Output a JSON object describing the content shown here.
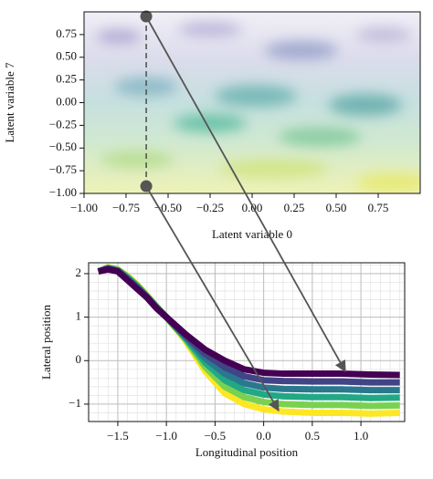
{
  "chart_data": [
    {
      "type": "scatter",
      "xlabel": "Latent variable 0",
      "ylabel": "Latent variable 7",
      "x": [
        -0.63,
        -0.63
      ],
      "values": [
        0.95,
        -0.92
      ],
      "color": "#555555",
      "xlim": [
        -1,
        1
      ],
      "ylim": [
        -1,
        1
      ],
      "xticks": [
        {
          "value": -1,
          "label": "−1.00"
        },
        {
          "value": -0.75,
          "label": "−0.75"
        },
        {
          "value": -0.5,
          "label": "−0.50"
        },
        {
          "value": -0.25,
          "label": "−0.25"
        },
        {
          "value": 0,
          "label": "0.00"
        },
        {
          "value": 0.25,
          "label": "0.25"
        },
        {
          "value": 0.5,
          "label": "0.50"
        },
        {
          "value": 0.75,
          "label": "0.75"
        }
      ],
      "yticks": [
        {
          "value": -1,
          "label": "−1.00"
        },
        {
          "value": -0.75,
          "label": "−0.75"
        },
        {
          "value": -0.5,
          "label": "−0.50"
        },
        {
          "value": -0.25,
          "label": "−0.25"
        },
        {
          "value": 0,
          "label": "0.00"
        },
        {
          "value": 0.25,
          "label": "0.25"
        },
        {
          "value": 0.5,
          "label": "0.50"
        },
        {
          "value": 0.75,
          "label": "0.75"
        }
      ],
      "grid": false
    },
    {
      "type": "line",
      "xlabel": "Longitudinal position",
      "ylabel": "Lateral position",
      "x": [
        -1.7,
        -1.6,
        -1.5,
        -1.4,
        -1.3,
        -1.2,
        -1.1,
        -1.0,
        -0.8,
        -0.6,
        -0.4,
        -0.2,
        0.0,
        0.2,
        0.5,
        0.8,
        1.1,
        1.4
      ],
      "series": [
        {
          "color": "#440154",
          "values": [
            2.05,
            2.1,
            2.05,
            1.85,
            1.65,
            1.45,
            1.2,
            1.0,
            0.6,
            0.25,
            0.0,
            -0.2,
            -0.28,
            -0.3,
            -0.3,
            -0.3,
            -0.32,
            -0.33
          ]
        },
        {
          "color": "#414487",
          "values": [
            2.05,
            2.11,
            2.06,
            1.87,
            1.67,
            1.46,
            1.21,
            1.0,
            0.57,
            0.15,
            -0.15,
            -0.36,
            -0.45,
            -0.47,
            -0.48,
            -0.48,
            -0.5,
            -0.5
          ]
        },
        {
          "color": "#2a788e",
          "values": [
            2.05,
            2.12,
            2.07,
            1.89,
            1.69,
            1.47,
            1.22,
            1.0,
            0.54,
            0.05,
            -0.3,
            -0.52,
            -0.62,
            -0.65,
            -0.66,
            -0.66,
            -0.68,
            -0.68
          ]
        },
        {
          "color": "#22a884",
          "values": [
            2.05,
            2.13,
            2.08,
            1.91,
            1.71,
            1.48,
            1.23,
            1.0,
            0.51,
            -0.05,
            -0.45,
            -0.68,
            -0.78,
            -0.82,
            -0.84,
            -0.84,
            -0.86,
            -0.85
          ]
        },
        {
          "color": "#7ad151",
          "values": [
            2.05,
            2.14,
            2.09,
            1.93,
            1.73,
            1.49,
            1.24,
            1.0,
            0.48,
            -0.15,
            -0.6,
            -0.84,
            -0.95,
            -1.0,
            -1.02,
            -1.02,
            -1.04,
            -1.03
          ]
        },
        {
          "color": "#fde725",
          "values": [
            2.05,
            2.15,
            2.1,
            1.95,
            1.75,
            1.5,
            1.25,
            1.0,
            0.45,
            -0.25,
            -0.75,
            -1.0,
            -1.12,
            -1.17,
            -1.2,
            -1.2,
            -1.22,
            -1.2
          ]
        }
      ],
      "xlim": [
        -1.8,
        1.45
      ],
      "ylim": [
        -1.4,
        2.25
      ],
      "xticks": [
        {
          "value": -1.5,
          "label": "−1.5"
        },
        {
          "value": -1.0,
          "label": "−1.0"
        },
        {
          "value": -0.5,
          "label": "−0.5"
        },
        {
          "value": 0.0,
          "label": "0.0"
        },
        {
          "value": 0.5,
          "label": "0.5"
        },
        {
          "value": 1.0,
          "label": "1.0"
        }
      ],
      "yticks": [
        {
          "value": -1,
          "label": "−1"
        },
        0,
        1,
        2
      ],
      "grid": true,
      "minor_grid": {
        "x": 0.1,
        "y": 0.2
      }
    }
  ]
}
